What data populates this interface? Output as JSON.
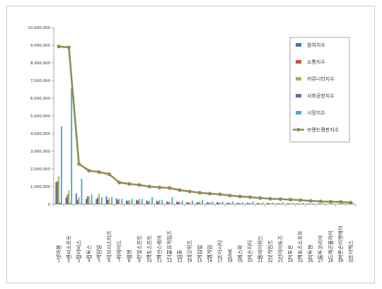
{
  "chart_data": {
    "type": "bar",
    "title": "",
    "xlabel": "",
    "ylabel": "",
    "ylim": [
      0,
      10000000
    ],
    "y_ticks": [
      "0",
      "1,000,000",
      "2,000,000",
      "3,000,000",
      "4,000,000",
      "5,000,000",
      "6,000,000",
      "7,000,000",
      "8,000,000",
      "9,000,000",
      "10,000,000"
    ],
    "grid": false,
    "legend_position": "right",
    "ranks": [
      "1",
      "2",
      "3",
      "4",
      "5",
      "6",
      "7",
      "8",
      "9",
      "10",
      "11",
      "12",
      "13",
      "14",
      "15",
      "16",
      "17",
      "18",
      "19",
      "20",
      "21",
      "22",
      "23",
      "24",
      "25",
      "26",
      "27",
      "28",
      "29",
      "30"
    ],
    "categories": [
      "넷마블",
      "엔씨소프트",
      "펄어비스",
      "컴투스",
      "게임빌",
      "데브시스터즈",
      "위메이드",
      "웹젠",
      "한빛소프트",
      "액토소프트",
      "액션스퀘어",
      "더블유게임즈",
      "넵튠",
      "네오위즈",
      "게임빌",
      "엠게임",
      "조이시티",
      "SNK",
      "베스파",
      "넥슨지티",
      "플레이위드",
      "넷게임즈",
      "선데이토즈",
      "미투온",
      "엑토즈소프트",
      "미투젠",
      "룽투코리아",
      "드래곤플라이",
      "바른손이앤에이",
      "조이맥스"
    ],
    "series": [
      {
        "name": "참여지수",
        "color": "#4a72b8",
        "type": "bar",
        "values": [
          1250000,
          380000,
          600000,
          300000,
          280000,
          450000,
          330000,
          200000,
          250000,
          220000,
          200000,
          150000,
          150000,
          120000,
          110000,
          110000,
          120000,
          90000,
          80000,
          90000,
          80000,
          80000,
          60000,
          60000,
          50000,
          40000,
          40000,
          30000,
          30000,
          20000
        ]
      },
      {
        "name": "소통지수",
        "color": "#c0504d",
        "type": "bar",
        "values": [
          1300000,
          550000,
          250000,
          450000,
          380000,
          250000,
          250000,
          180000,
          200000,
          150000,
          150000,
          120000,
          120000,
          100000,
          90000,
          80000,
          70000,
          60000,
          60000,
          50000,
          50000,
          40000,
          40000,
          40000,
          30000,
          30000,
          30000,
          20000,
          20000,
          20000
        ]
      },
      {
        "name": "커뮤니티지수",
        "color": "#9bbb59",
        "type": "bar",
        "values": [
          1600000,
          800000,
          400000,
          450000,
          600000,
          350000,
          300000,
          250000,
          300000,
          200000,
          250000,
          150000,
          150000,
          100000,
          150000,
          120000,
          100000,
          100000,
          80000,
          80000,
          60000,
          60000,
          50000,
          40000,
          40000,
          30000,
          30000,
          30000,
          20000,
          20000
        ]
      },
      {
        "name": "사회공헌지수",
        "color": "#7e5fa3",
        "type": "bar",
        "values": [
          80000,
          60000,
          30000,
          40000,
          40000,
          30000,
          20000,
          20000,
          30000,
          20000,
          20000,
          20000,
          10000,
          10000,
          10000,
          10000,
          10000,
          10000,
          10000,
          10000,
          10000,
          10000,
          10000,
          10000,
          10000,
          10000,
          10000,
          10000,
          10000,
          10000
        ]
      },
      {
        "name": "시장지수",
        "color": "#4bacc6",
        "type": "bar",
        "values": [
          4400000,
          6600000,
          1450000,
          550000,
          400000,
          400000,
          300000,
          300000,
          300000,
          400000,
          250000,
          400000,
          200000,
          200000,
          250000,
          150000,
          150000,
          150000,
          100000,
          150000,
          100000,
          100000,
          100000,
          80000,
          80000,
          60000,
          60000,
          50000,
          50000,
          40000
        ]
      },
      {
        "name": "브랜드평판지수",
        "color": "#948a54",
        "type": "line",
        "values": [
          8930000,
          8880000,
          2280000,
          1900000,
          1820000,
          1700000,
          1230000,
          1150000,
          1090000,
          1000000,
          950000,
          920000,
          800000,
          720000,
          650000,
          600000,
          560000,
          490000,
          440000,
          400000,
          350000,
          310000,
          290000,
          260000,
          230000,
          190000,
          160000,
          140000,
          130000,
          90000
        ]
      }
    ]
  }
}
